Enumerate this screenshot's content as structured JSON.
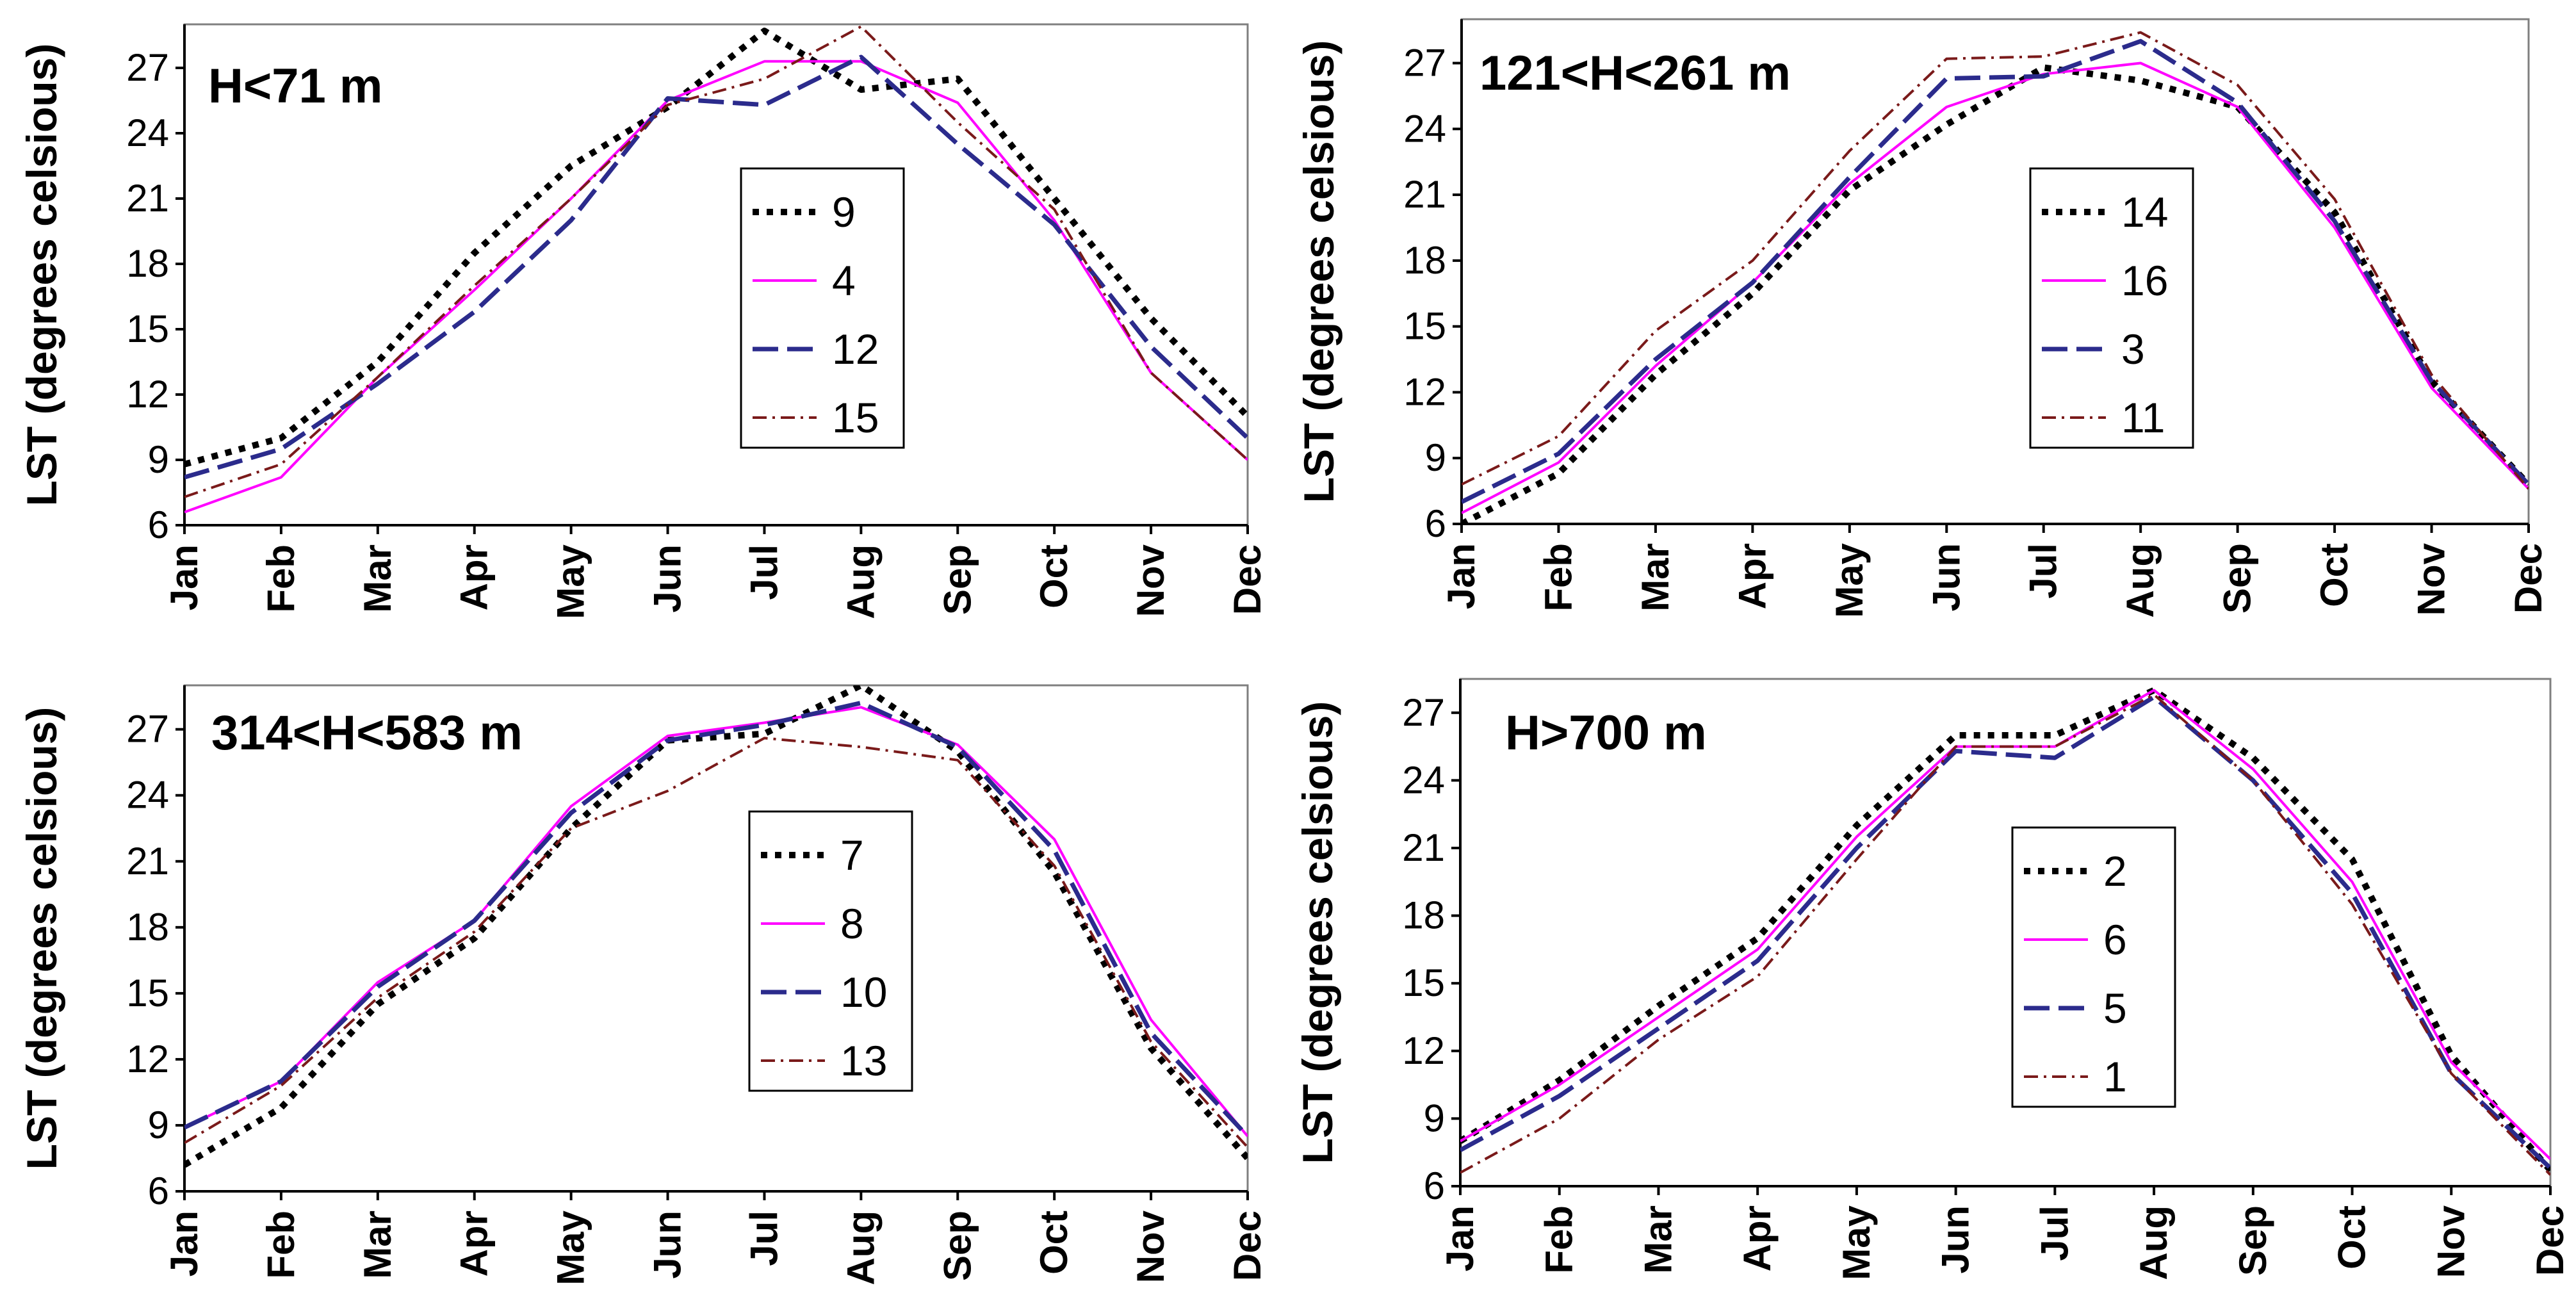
{
  "chart_data": [
    {
      "type": "line",
      "title": "H<71 m",
      "xlabel": "",
      "ylabel": "LST (degrees celsious)",
      "ylim": [
        6,
        29
      ],
      "yticks": [
        "6",
        "9",
        "12",
        "15",
        "18",
        "21",
        "24",
        "27"
      ],
      "categories": [
        "Jan",
        "Feb",
        "Mar",
        "Apr",
        "May",
        "Jun",
        "Jul",
        "Aug",
        "Sep",
        "Oct",
        "Nov",
        "Dec"
      ],
      "legend_position": "center",
      "series": [
        {
          "name": "9",
          "style": "dotted",
          "color": "#000000",
          "values": [
            8.8,
            10.0,
            13.5,
            18.5,
            22.5,
            25.2,
            28.7,
            26.0,
            26.5,
            21.0,
            15.5,
            11.0
          ]
        },
        {
          "name": "4",
          "style": "solid",
          "color": "#ff00ff",
          "values": [
            6.6,
            8.2,
            12.8,
            16.8,
            21.0,
            25.5,
            27.3,
            27.3,
            25.4,
            20.0,
            13.0,
            9.0
          ]
        },
        {
          "name": "12",
          "style": "dashed",
          "color": "#2b2b8c",
          "values": [
            8.2,
            9.5,
            12.5,
            15.8,
            20.0,
            25.6,
            25.3,
            27.5,
            23.5,
            19.8,
            14.2,
            10.0
          ]
        },
        {
          "name": "15",
          "style": "dashdot",
          "color": "#7a1a1a",
          "values": [
            7.3,
            8.8,
            12.8,
            17.0,
            21.0,
            25.3,
            26.5,
            28.9,
            24.5,
            20.5,
            13.0,
            9.0
          ]
        }
      ]
    },
    {
      "type": "line",
      "title": "121<H<261 m",
      "xlabel": "",
      "ylabel": "LST (degrees celsious)",
      "ylim": [
        6,
        29
      ],
      "yticks": [
        "6",
        "9",
        "12",
        "15",
        "18",
        "21",
        "24",
        "27"
      ],
      "categories": [
        "Jan",
        "Feb",
        "Mar",
        "Apr",
        "May",
        "Jun",
        "Jul",
        "Aug",
        "Sep",
        "Oct",
        "Nov",
        "Dec"
      ],
      "legend_position": "center",
      "series": [
        {
          "name": "14",
          "style": "dotted",
          "color": "#000000",
          "values": [
            6.0,
            8.3,
            12.8,
            16.5,
            21.2,
            24.2,
            26.8,
            26.2,
            25.0,
            20.2,
            12.5,
            7.8
          ]
        },
        {
          "name": "16",
          "style": "solid",
          "color": "#ff00ff",
          "values": [
            6.5,
            8.8,
            13.2,
            17.0,
            21.5,
            25.0,
            26.5,
            27.0,
            25.0,
            19.5,
            12.2,
            7.6
          ]
        },
        {
          "name": "3",
          "style": "dashed",
          "color": "#2b2b8c",
          "values": [
            7.0,
            9.2,
            13.5,
            17.0,
            21.8,
            26.3,
            26.4,
            28.0,
            25.2,
            19.8,
            12.5,
            7.8
          ]
        },
        {
          "name": "11",
          "style": "dashdot",
          "color": "#7a1a1a",
          "values": [
            7.8,
            10.0,
            14.8,
            18.0,
            23.0,
            27.2,
            27.3,
            28.4,
            26.0,
            20.8,
            12.8,
            7.6
          ]
        }
      ]
    },
    {
      "type": "line",
      "title": "314<H<583 m",
      "xlabel": "",
      "ylabel": "LST (degrees celsious)",
      "ylim": [
        6,
        29
      ],
      "yticks": [
        "6",
        "9",
        "12",
        "15",
        "18",
        "21",
        "24",
        "27"
      ],
      "categories": [
        "Jan",
        "Feb",
        "Mar",
        "Apr",
        "May",
        "Jun",
        "Jul",
        "Aug",
        "Sep",
        "Oct",
        "Nov",
        "Dec"
      ],
      "legend_position": "center",
      "series": [
        {
          "name": "7",
          "style": "dotted",
          "color": "#000000",
          "values": [
            7.2,
            9.8,
            14.5,
            17.5,
            22.5,
            26.5,
            26.8,
            29.0,
            26.0,
            20.5,
            12.5,
            7.5
          ]
        },
        {
          "name": "8",
          "style": "solid",
          "color": "#ff00ff",
          "values": [
            8.9,
            11.0,
            15.5,
            18.3,
            23.5,
            26.7,
            27.3,
            28.0,
            26.3,
            22.0,
            13.8,
            8.5
          ]
        },
        {
          "name": "10",
          "style": "dashed",
          "color": "#2b2b8c",
          "values": [
            8.9,
            11.0,
            15.3,
            18.3,
            23.2,
            26.5,
            27.2,
            28.2,
            26.2,
            21.5,
            13.2,
            8.5
          ]
        },
        {
          "name": "13",
          "style": "dashdot",
          "color": "#7a1a1a",
          "values": [
            8.2,
            10.8,
            14.8,
            17.8,
            22.5,
            24.2,
            26.6,
            26.2,
            25.6,
            20.8,
            12.8,
            8.0
          ]
        }
      ]
    },
    {
      "type": "line",
      "title": "H>700 m",
      "xlabel": "",
      "ylabel": "LST (degrees celsious)",
      "ylim": [
        6,
        28.5
      ],
      "yticks": [
        "6",
        "9",
        "12",
        "15",
        "18",
        "21",
        "24",
        "27"
      ],
      "categories": [
        "Jan",
        "Feb",
        "Mar",
        "Apr",
        "May",
        "Jun",
        "Jul",
        "Aug",
        "Sep",
        "Oct",
        "Nov",
        "Dec"
      ],
      "legend_position": "center",
      "series": [
        {
          "name": "2",
          "style": "dotted",
          "color": "#000000",
          "values": [
            8.0,
            10.7,
            14.0,
            17.0,
            22.0,
            26.0,
            26.0,
            28.0,
            25.0,
            20.5,
            11.8,
            6.7
          ]
        },
        {
          "name": "6",
          "style": "solid",
          "color": "#ff00ff",
          "values": [
            8.0,
            10.5,
            13.5,
            16.5,
            21.5,
            25.5,
            25.5,
            28.0,
            24.5,
            19.5,
            11.5,
            7.2
          ]
        },
        {
          "name": "5",
          "style": "dashed",
          "color": "#2b2b8c",
          "values": [
            7.6,
            10.0,
            13.0,
            16.0,
            21.0,
            25.3,
            25.0,
            27.7,
            24.0,
            19.0,
            11.0,
            6.8
          ]
        },
        {
          "name": "1",
          "style": "dashdot",
          "color": "#7a1a1a",
          "values": [
            6.6,
            9.0,
            12.5,
            15.3,
            20.5,
            25.5,
            25.5,
            27.8,
            24.0,
            18.5,
            11.0,
            6.5
          ]
        }
      ]
    }
  ]
}
